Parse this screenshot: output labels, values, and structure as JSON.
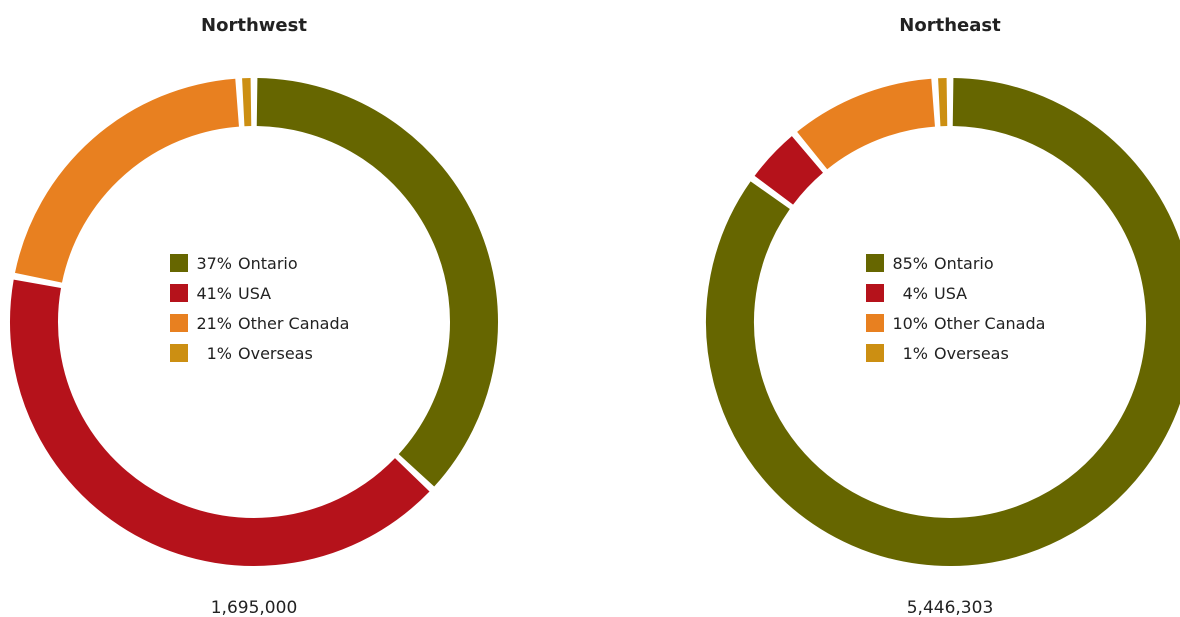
{
  "chart_data": [
    {
      "type": "pie",
      "title": "Northwest",
      "total_label": "1,695,000",
      "slices": [
        {
          "label": "Ontario",
          "value": 37,
          "value_label": "37%",
          "color": "#666600"
        },
        {
          "label": "USA",
          "value": 41,
          "value_label": "41%",
          "color": "#b5121b"
        },
        {
          "label": "Other Canada",
          "value": 21,
          "value_label": "21%",
          "color": "#e88020"
        },
        {
          "label": "Overseas",
          "value": 1,
          "value_label": "1%",
          "color": "#cc8f12"
        }
      ]
    },
    {
      "type": "pie",
      "title": "Northeast",
      "total_label": "5,446,303",
      "slices": [
        {
          "label": "Ontario",
          "value": 85,
          "value_label": "85%",
          "color": "#666600"
        },
        {
          "label": "USA",
          "value": 4,
          "value_label": "4%",
          "color": "#b5121b"
        },
        {
          "label": "Other Canada",
          "value": 10,
          "value_label": "10%",
          "color": "#e88020"
        },
        {
          "label": "Overseas",
          "value": 1,
          "value_label": "1%",
          "color": "#cc8f12"
        }
      ]
    }
  ]
}
